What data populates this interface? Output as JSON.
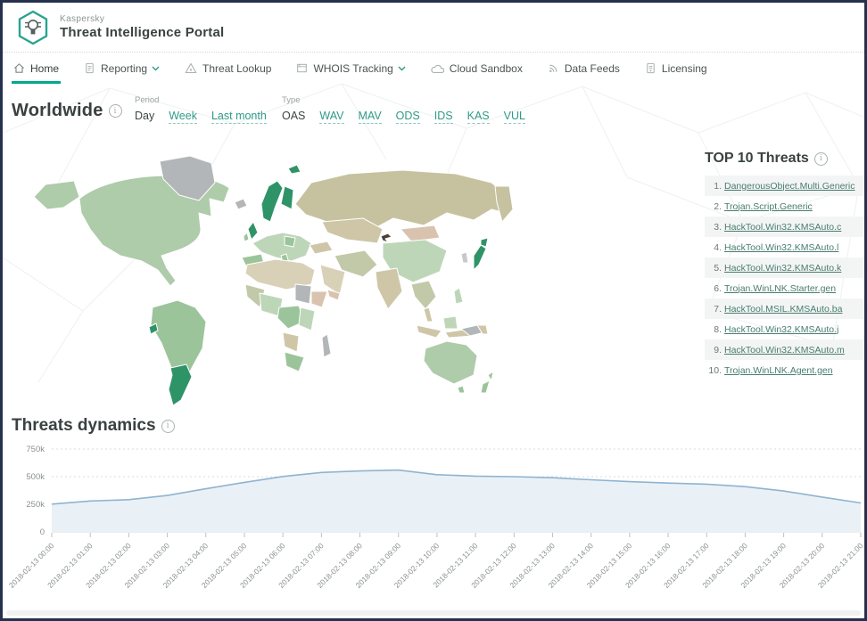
{
  "brand": {
    "company": "Kaspersky",
    "product": "Threat Intelligence Portal"
  },
  "nav": {
    "items": [
      {
        "label": "Home",
        "active": true
      },
      {
        "label": "Reporting",
        "dropdown": true
      },
      {
        "label": "Threat Lookup"
      },
      {
        "label": "WHOIS Tracking",
        "dropdown": true
      },
      {
        "label": "Cloud Sandbox"
      },
      {
        "label": "Data Feeds"
      },
      {
        "label": "Licensing"
      }
    ]
  },
  "worldwide": {
    "title": "Worldwide",
    "period": {
      "label": "Period",
      "options": [
        "Day",
        "Week",
        "Last month"
      ],
      "selected": "Day"
    },
    "type": {
      "label": "Type",
      "options": [
        "OAS",
        "WAV",
        "MAV",
        "ODS",
        "IDS",
        "KAS",
        "VUL"
      ],
      "selected": "OAS"
    }
  },
  "top_threats": {
    "title": "TOP 10 Threats",
    "items": [
      {
        "rank": "1.",
        "name": "DangerousObject.Multi.Generic"
      },
      {
        "rank": "2.",
        "name": "Trojan.Script.Generic"
      },
      {
        "rank": "3.",
        "name": "HackTool.Win32.KMSAuto.c"
      },
      {
        "rank": "4.",
        "name": "HackTool.Win32.KMSAuto.l"
      },
      {
        "rank": "5.",
        "name": "HackTool.Win32.KMSAuto.k"
      },
      {
        "rank": "6.",
        "name": "Trojan.WinLNK.Starter.gen"
      },
      {
        "rank": "7.",
        "name": "HackTool.MSIL.KMSAuto.ba"
      },
      {
        "rank": "8.",
        "name": "HackTool.Win32.KMSAuto.j"
      },
      {
        "rank": "9.",
        "name": "HackTool.Win32.KMSAuto.m"
      },
      {
        "rank": "10.",
        "name": "Trojan.WinLNK.Agent.gen"
      }
    ]
  },
  "threats_dynamics": {
    "title": "Threats dynamics"
  },
  "chart_data": {
    "type": "area",
    "title": "Threats dynamics",
    "x": [
      "2018-02-13 00:00",
      "2018-02-13 01:00",
      "2018-02-13 02:00",
      "2018-02-13 03:00",
      "2018-02-13 04:00",
      "2018-02-13 05:00",
      "2018-02-13 06:00",
      "2018-02-13 07:00",
      "2018-02-13 08:00",
      "2018-02-13 09:00",
      "2018-02-13 10:00",
      "2018-02-13 11:00",
      "2018-02-13 12:00",
      "2018-02-13 13:00",
      "2018-02-13 14:00",
      "2018-02-13 15:00",
      "2018-02-13 16:00",
      "2018-02-13 17:00",
      "2018-02-13 18:00",
      "2018-02-13 19:00",
      "2018-02-13 20:00",
      "2018-02-13 21:00"
    ],
    "values": [
      252000,
      280000,
      292000,
      330000,
      390000,
      448000,
      502000,
      538000,
      552000,
      560000,
      518000,
      505000,
      500000,
      490000,
      472000,
      455000,
      442000,
      432000,
      410000,
      370000,
      315000,
      262000
    ],
    "ylim": [
      0,
      750000
    ],
    "y_ticks": [
      {
        "label": "750k",
        "value": 750000
      },
      {
        "label": "500k",
        "value": 500000
      },
      {
        "label": "250k",
        "value": 250000
      },
      {
        "label": "0",
        "value": 0
      }
    ],
    "grid": "dotted-horizontal",
    "legend": "none",
    "colors": {
      "line": "#8fb3d0",
      "area": "#e9f1f7",
      "axis": "#c9cdcd",
      "tick_text": "#8b9191"
    }
  },
  "map": {
    "palette": {
      "greenLight": "#aecbaa",
      "greenPale": "#bdd6b8",
      "greenMid": "#9cc49b",
      "greenDark": "#2f9368",
      "olive": "#c6c2a0",
      "tan": "#cfc6a8",
      "tanGreen": "#c2c9a8",
      "beige": "#d9d0b8",
      "rose": "#d9c3ae",
      "gray": "#b3b6b8",
      "grayLight": "#c6c9ca",
      "marker": "#4a4238"
    },
    "colors_brand": {
      "teal": "#00a88e"
    }
  }
}
